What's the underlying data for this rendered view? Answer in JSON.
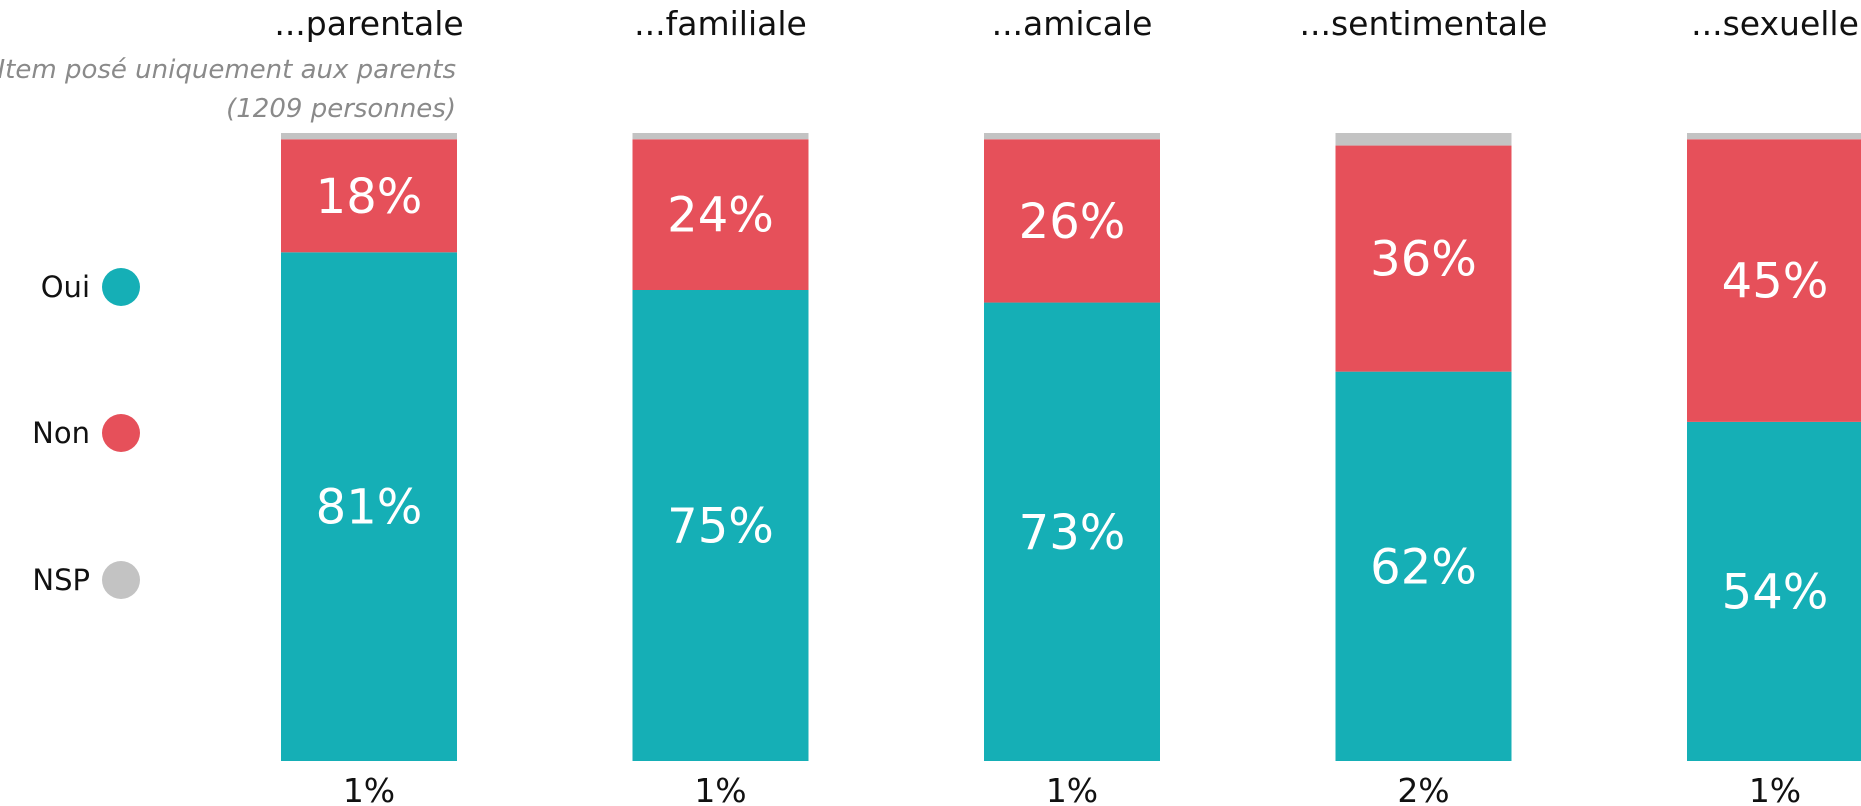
{
  "note": {
    "line1": "Item posé uniquement aux parents",
    "line2": "(1209 personnes)"
  },
  "legend": [
    {
      "label": "Oui",
      "color": "#15afb6"
    },
    {
      "label": "Non",
      "color": "#e6505a"
    },
    {
      "label": "NSP",
      "color": "#c3c3c3"
    }
  ],
  "chart_data": {
    "type": "bar",
    "stacked": true,
    "categories": [
      "...parentale",
      "...familiale",
      "...amicale",
      "...sentimentale",
      "...sexuelle"
    ],
    "series": [
      {
        "name": "Oui",
        "color": "#15afb6",
        "values": [
          81,
          75,
          73,
          62,
          54
        ],
        "labels": [
          "81%",
          "75%",
          "73%",
          "62%",
          "54%"
        ]
      },
      {
        "name": "Non",
        "color": "#e6505a",
        "values": [
          18,
          24,
          26,
          36,
          45
        ],
        "labels": [
          "18%",
          "24%",
          "26%",
          "36%",
          "45%"
        ]
      },
      {
        "name": "NSP",
        "color": "#c3c3c3",
        "values": [
          1,
          1,
          1,
          2,
          1
        ],
        "labels": [
          "1%",
          "1%",
          "1%",
          "2%",
          "1%"
        ]
      }
    ],
    "ylim": [
      0,
      100
    ],
    "grid": false,
    "legend_position": "left"
  }
}
